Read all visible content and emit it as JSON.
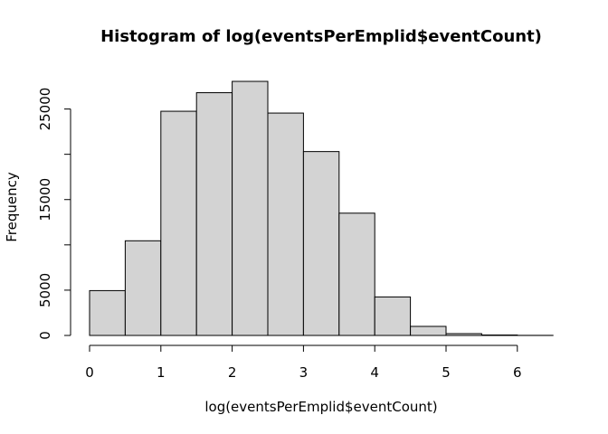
{
  "chart_data": {
    "type": "bar",
    "title": "Histogram of log(eventsPerEmplid$eventCount)",
    "xlabel": "log(eventsPerEmplid$eventCount)",
    "ylabel": "Frequency",
    "bin_edges": [
      0,
      0.5,
      1,
      1.5,
      2,
      2.5,
      3,
      3.5,
      4,
      4.5,
      5,
      5.5,
      6,
      6.5
    ],
    "values": [
      4950,
      10450,
      24750,
      26800,
      28050,
      24550,
      20300,
      13500,
      4250,
      1000,
      200,
      50,
      10
    ],
    "xlim": [
      0,
      6.5
    ],
    "ylim": [
      0,
      28050
    ],
    "x_ticks": [
      "0",
      "1",
      "2",
      "3",
      "4",
      "5",
      "6"
    ],
    "y_ticks": [
      "0",
      "5000",
      "15000",
      "25000"
    ],
    "grid": false,
    "bar_color": "#d3d3d3",
    "edge_color": "#000000"
  }
}
